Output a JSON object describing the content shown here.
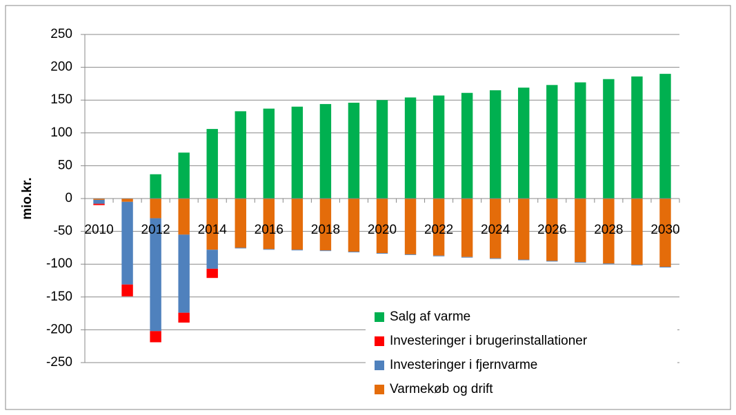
{
  "chart_data": {
    "type": "stacked_bar",
    "y_label": "mio.kr.",
    "categories": [
      "2010",
      null,
      "2012",
      null,
      "2014",
      null,
      "2016",
      null,
      "2018",
      null,
      "2020",
      null,
      "2022",
      null,
      "2024",
      null,
      "2026",
      null,
      "2028",
      null,
      "2030"
    ],
    "series": [
      {
        "name": "Salg af varme",
        "color": "#00b050",
        "values": [
          0,
          0,
          37,
          70,
          106,
          133,
          137,
          140,
          144,
          146,
          150,
          154,
          157,
          161,
          165,
          169,
          173,
          177,
          182,
          186,
          190
        ]
      },
      {
        "name": "Investeringer i brugerinstallationer",
        "color": "#ff0000",
        "values": [
          -2,
          -18,
          -17,
          -15,
          -14,
          0,
          0,
          0,
          0,
          0,
          0,
          0,
          0,
          0,
          0,
          0,
          0,
          0,
          0,
          0,
          0
        ]
      },
      {
        "name": "Investeringer i fjernvarme",
        "color": "#4f81bd",
        "values": [
          -6,
          -126,
          -172,
          -119,
          -29,
          -1,
          -1,
          -1,
          -1,
          -1,
          -1,
          -1,
          -1,
          -1,
          -1,
          -1,
          -1,
          -1,
          -1,
          -1,
          -1
        ]
      },
      {
        "name": "Varmekøb og drift",
        "color": "#e46c0a",
        "values": [
          -2,
          -5,
          -30,
          -55,
          -78,
          -75,
          -77,
          -78,
          -79,
          -81,
          -83,
          -85,
          -87,
          -89,
          -91,
          -93,
          -95,
          -97,
          -99,
          -101,
          -104
        ]
      }
    ],
    "ylim": [
      -250,
      250
    ],
    "yticks": [
      -250,
      -200,
      -150,
      -100,
      -50,
      0,
      50,
      100,
      150,
      200,
      250
    ],
    "grid": true
  }
}
